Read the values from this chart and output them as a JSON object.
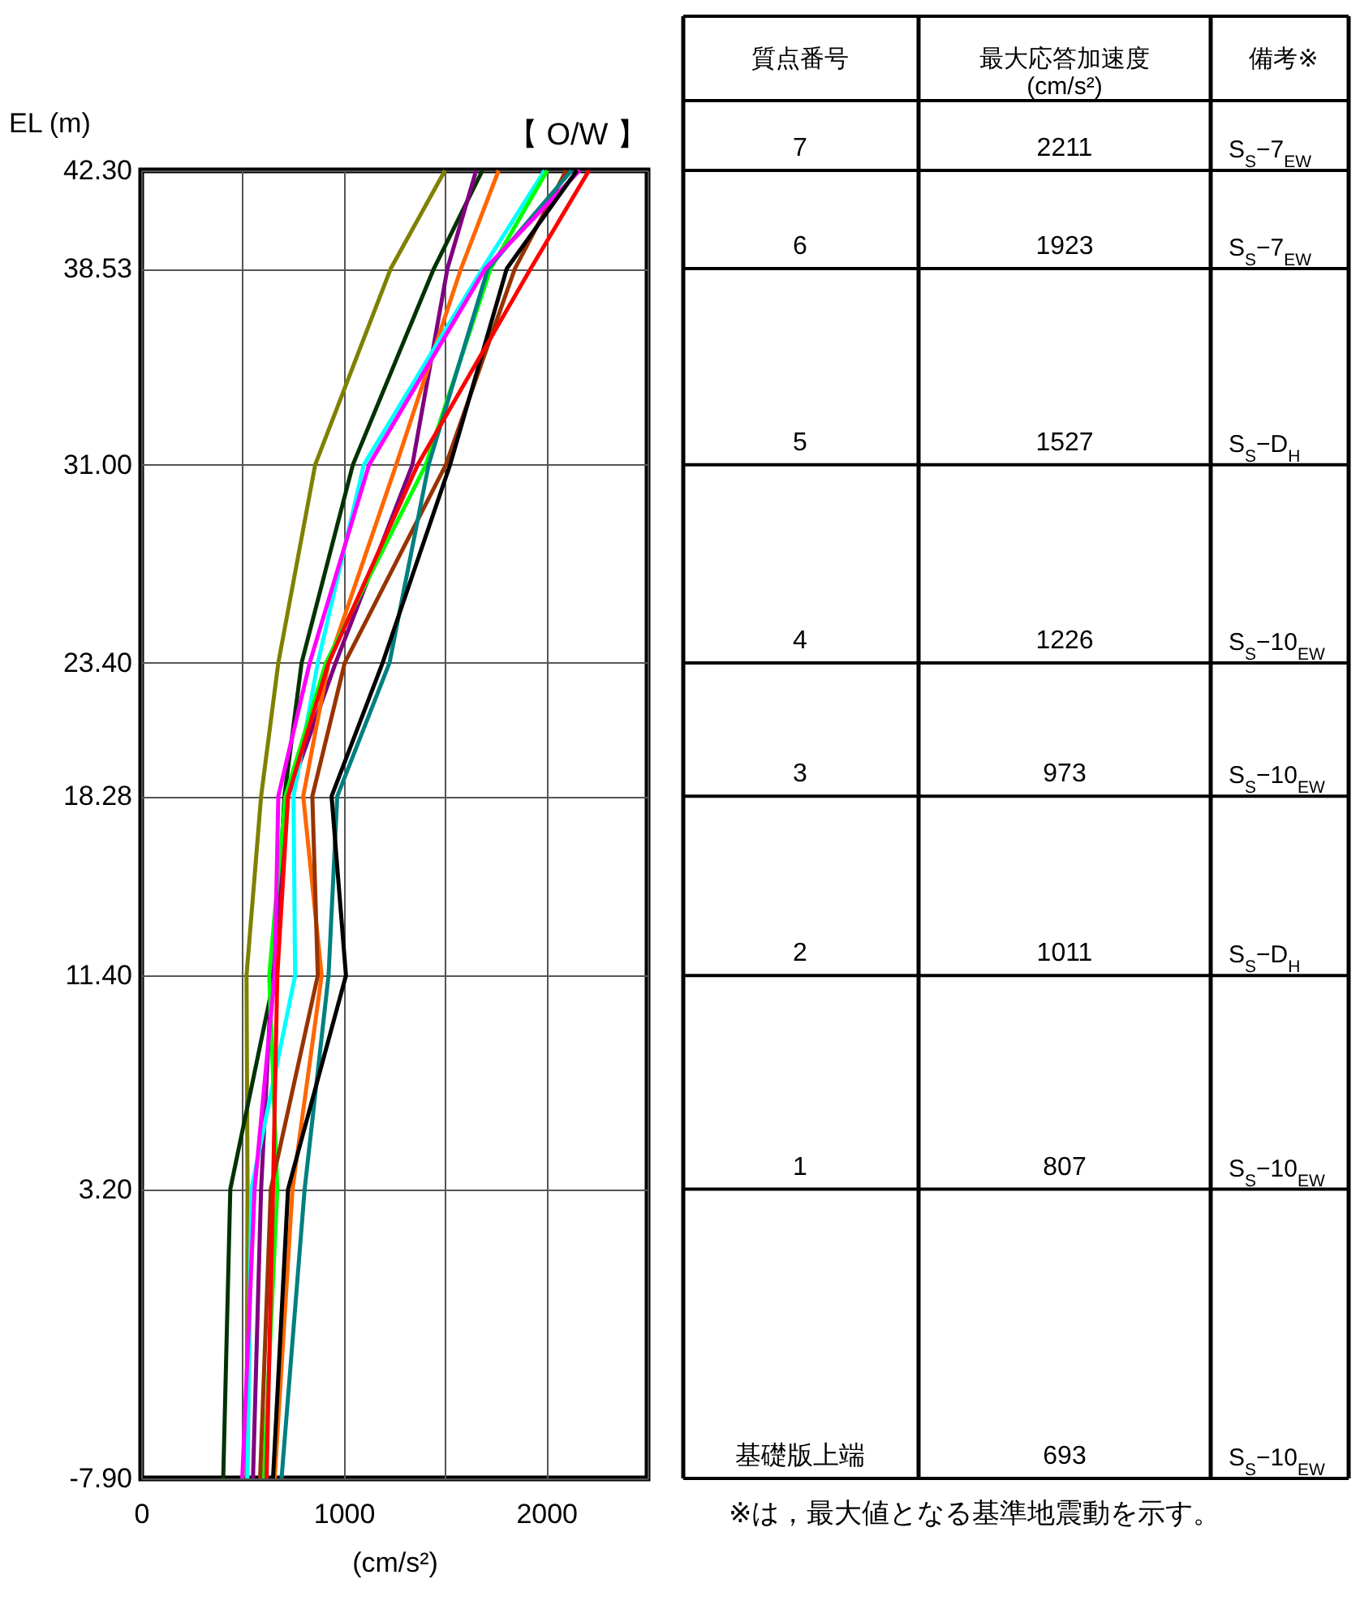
{
  "chart_data": [
    {
      "type": "line",
      "title": "【 O/W 】",
      "ylabel": "EL (m)",
      "xlabel": "(cm/s²)",
      "xlim": [
        0,
        2500
      ],
      "xticks": [
        0,
        {
          "value": 500,
          "label": null
        },
        1000,
        {
          "value": 1500,
          "label": null
        },
        2000,
        {
          "value": 2500,
          "label": null
        }
      ],
      "ylim": [
        -7.9,
        42.3
      ],
      "yticks": [
        {
          "value": -7.9,
          "label": "-7.90"
        },
        {
          "value": 3.2,
          "label": "3.20"
        },
        {
          "value": 11.4,
          "label": "11.40"
        },
        {
          "value": 18.28,
          "label": "18.28"
        },
        {
          "value": 23.4,
          "label": "23.40"
        },
        {
          "value": 31,
          "label": "31.00"
        },
        {
          "value": 38.53,
          "label": "38.53"
        },
        {
          "value": 42.3,
          "label": "42.30"
        }
      ],
      "grid": true,
      "legend": false,
      "marker": "none",
      "line_style": "solid",
      "series": [
        {
          "color": "#808000",
          "x": [
            1500,
            1232,
            859,
            677,
            592,
            520,
            525,
            520
          ],
          "values": [
            42.3,
            38.53,
            31,
            23.4,
            18.28,
            11.4,
            3.2,
            -7.9
          ]
        },
        {
          "color": "#003300",
          "x": [
            1685,
            1445,
            1045,
            792,
            707,
            659,
            440,
            405
          ],
          "values": [
            42.3,
            38.53,
            31,
            23.4,
            18.28,
            11.4,
            3.2,
            -7.9
          ]
        },
        {
          "color": "#800080",
          "x": [
            1654,
            1512,
            1339,
            960,
            725,
            645,
            592,
            552
          ],
          "values": [
            42.3,
            38.53,
            31,
            23.4,
            18.28,
            11.4,
            3.2,
            -7.9
          ]
        },
        {
          "color": "#ff6600",
          "x": [
            1765,
            1579,
            1259,
            925,
            800,
            891,
            747,
            659
          ],
          "values": [
            42.3,
            38.53,
            31,
            23.4,
            18.28,
            11.4,
            3.2,
            -7.9
          ]
        },
        {
          "color": "#00ffff",
          "x": [
            1992,
            1685,
            1099,
            872,
            752,
            760,
            544,
            525
          ],
          "values": [
            42.3,
            38.53,
            31,
            23.4,
            18.28,
            11.4,
            3.2,
            -7.9
          ]
        },
        {
          "color": "#00ff00",
          "x": [
            2005,
            1725,
            1405,
            912,
            712,
            632,
            672,
            605
          ],
          "values": [
            42.3,
            38.53,
            31,
            23.4,
            18.28,
            11.4,
            3.2,
            -7.9
          ]
        },
        {
          "color": "#993300",
          "x": [
            2099,
            1845,
            1504,
            1005,
            845,
            872,
            640,
            587
          ],
          "values": [
            42.3,
            38.53,
            31,
            23.4,
            18.28,
            11.4,
            3.2,
            -7.9
          ]
        },
        {
          "color": "#008080",
          "x": [
            2125,
            1712,
            1419,
            1226,
            968,
            925,
            807,
            693
          ],
          "values": [
            42.3,
            38.53,
            31,
            23.4,
            18.28,
            11.4,
            3.2,
            -7.9
          ]
        },
        {
          "color": "#ff00ff",
          "x": [
            2165,
            1699,
            1125,
            832,
            677,
            659,
            560,
            499
          ],
          "values": [
            42.3,
            38.53,
            31,
            23.4,
            18.28,
            11.4,
            3.2,
            -7.9
          ]
        },
        {
          "color": "#000000",
          "x": [
            2152,
            1805,
            1525,
            1192,
            940,
            1011,
            725,
            651
          ],
          "values": [
            42.3,
            38.53,
            31,
            23.4,
            18.28,
            11.4,
            3.2,
            -7.9
          ]
        },
        {
          "color": "#ff0000",
          "x": [
            2211,
            1923,
            1365,
            925,
            725,
            672,
            651,
            619
          ],
          "values": [
            42.3,
            38.53,
            31,
            23.4,
            18.28,
            11.4,
            3.2,
            -7.9
          ]
        }
      ]
    },
    {
      "type": "other",
      "categories": [
        "7",
        "6",
        "5",
        "4",
        "3",
        "2",
        "1",
        "基礎版上端"
      ],
      "values": [
        2211,
        1923,
        1527,
        1226,
        973,
        1011,
        807,
        693
      ],
      "data_labels": true,
      "annotations": [
        "質点番号",
        "最大応答加速度\n(cm/s²)",
        "備考※",
        "S$_{S}$−7$_{EW}$",
        "S$_{S}$−7$_{EW}$",
        "S$_{S}$−D$_{H}$",
        "S$_{S}$−10$_{EW}$",
        "S$_{S}$−10$_{EW}$",
        "S$_{S}$−D$_{H}$",
        "S$_{S}$−10$_{EW}$",
        "S$_{S}$−10$_{EW}$",
        "※は，最大値となる基準地震動を示す。"
      ]
    }
  ]
}
